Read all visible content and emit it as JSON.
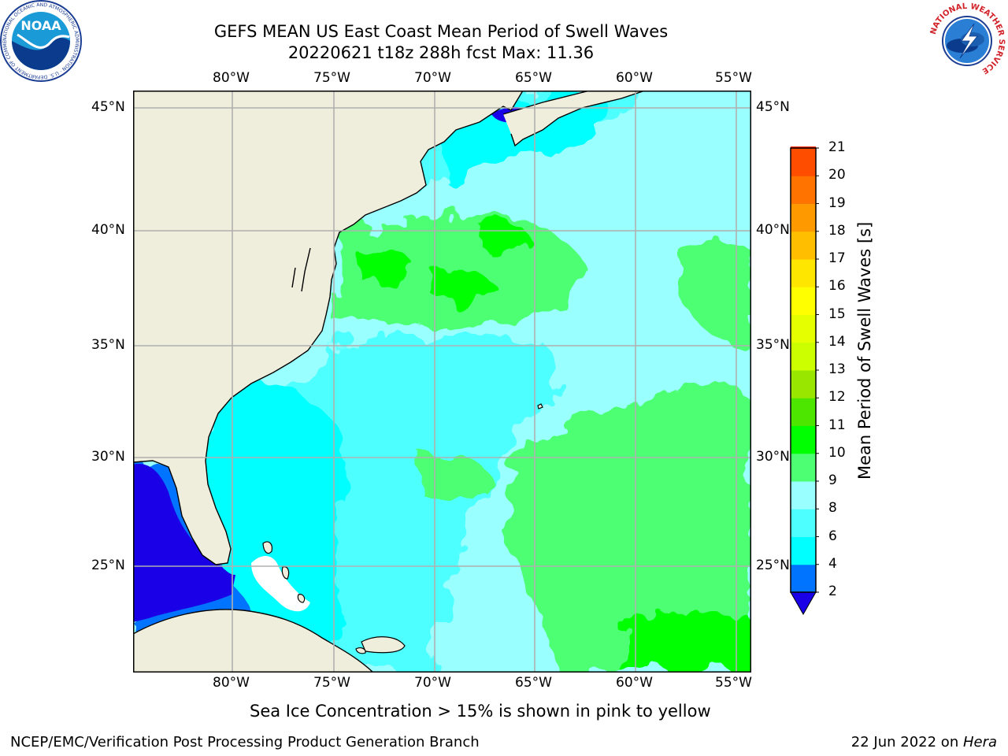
{
  "title": {
    "line1": "GEFS MEAN US East Coast Mean Period of Swell Waves",
    "line2": "20220621 t18z 288h fcst   Max: 11.36"
  },
  "map": {
    "lon_labels": [
      "80°W",
      "75°W",
      "70°W",
      "65°W",
      "60°W",
      "55°W"
    ],
    "lat_labels": [
      "45°N",
      "40°N",
      "35°N",
      "30°N",
      "25°N"
    ],
    "colors": {
      "land": "#efeedd",
      "grid": "#b0b0b0",
      "coast": "#000000",
      "under": "#1a00e6"
    }
  },
  "colorbar": {
    "label": "Mean Period of Swell Waves [s]",
    "ticks": [
      "21",
      "20",
      "19",
      "18",
      "17",
      "16",
      "15",
      "14",
      "13",
      "12",
      "11",
      "10",
      "9",
      "8",
      "6",
      "4",
      "2"
    ],
    "colors": [
      "#0073ff",
      "#00ffff",
      "#4dffff",
      "#99ffff",
      "#4dff73",
      "#00ff00",
      "#4de600",
      "#99e600",
      "#ccff00",
      "#e6ff00",
      "#ffff00",
      "#ffe600",
      "#ffbf00",
      "#ff9900",
      "#ff7300",
      "#ff4d00",
      "#ff2600",
      "#ff0000"
    ]
  },
  "note": "Sea Ice Concentration > 15% is shown in pink to yellow",
  "footer": {
    "left": "NCEP/EMC/Verification Post Processing Product Generation Branch",
    "right_prefix": "22 Jun 2022 on ",
    "right_host": "Hera"
  },
  "logos": {
    "noaa": "NOAA",
    "noaa_ring": "NATIONAL OCEANIC AND ATMOSPHERIC ADMINISTRATION · U.S. DEPARTMENT OF COMMERCE",
    "nws_ring": "NATIONAL WEATHER SERVICE"
  }
}
